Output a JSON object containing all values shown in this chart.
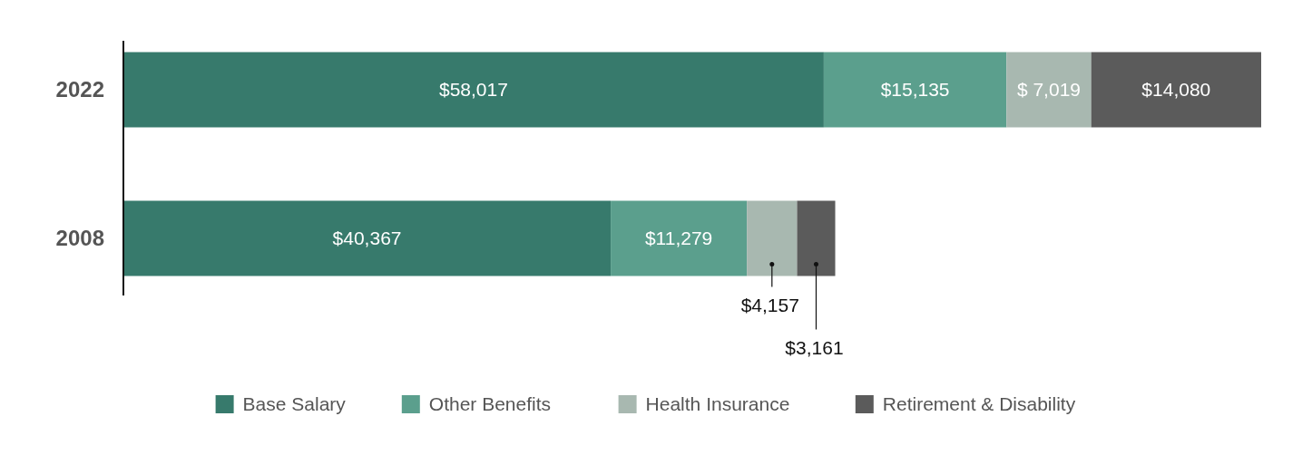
{
  "chart_data": {
    "type": "bar",
    "orientation": "horizontal",
    "stacked": true,
    "categories": [
      "2022",
      "2008"
    ],
    "legend": "bottom",
    "series": [
      {
        "name": "Base Salary",
        "color": "#377a6c",
        "values": [
          58017,
          40367
        ],
        "value_labels": [
          "$58,017",
          "$40,367"
        ]
      },
      {
        "name": "Other Benefits",
        "color": "#5b9f8d",
        "values": [
          15135,
          11279
        ],
        "value_labels": [
          "$15,135",
          "$11,279"
        ]
      },
      {
        "name": "Health Insurance",
        "color": "#a8b8b0",
        "values": [
          7019,
          4157
        ],
        "value_labels": [
          "$ 7,019",
          "$4,157"
        ]
      },
      {
        "name": "Retirement & Disability",
        "color": "#5b5b5b",
        "values": [
          14080,
          3161
        ],
        "value_labels": [
          "$14,080",
          "$3,161"
        ]
      }
    ]
  }
}
